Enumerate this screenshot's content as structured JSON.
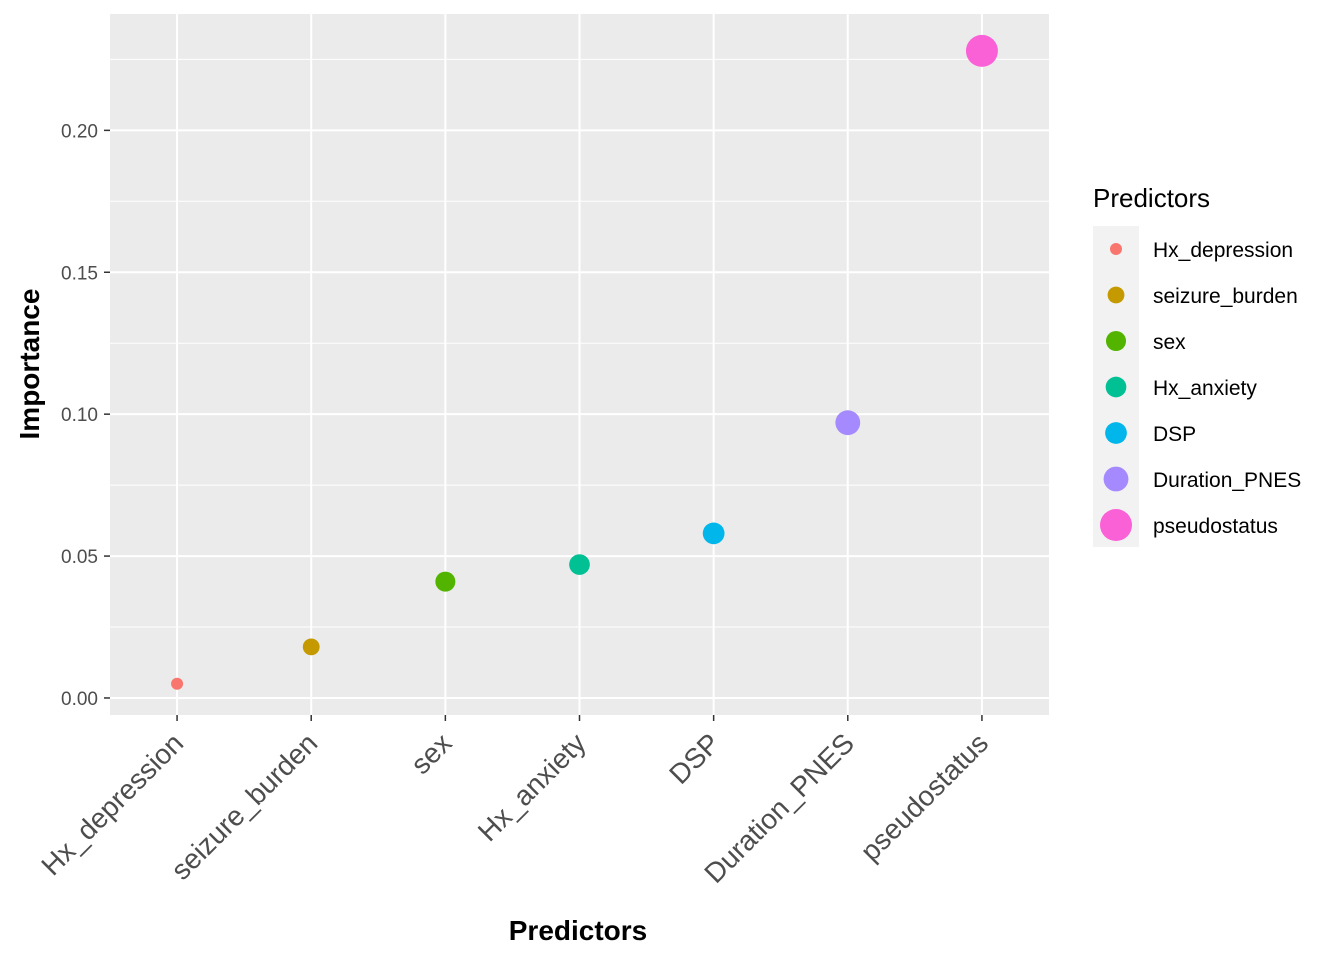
{
  "chart_data": {
    "type": "scatter",
    "categories": [
      "Hx_depression",
      "seizure_burden",
      "sex",
      "Hx_anxiety",
      "DSP",
      "Duration_PNES",
      "pseudostatus"
    ],
    "values": [
      0.005,
      0.018,
      0.041,
      0.047,
      0.058,
      0.097,
      0.228
    ],
    "colors": [
      "#F8766D",
      "#C49A00",
      "#53B400",
      "#00C094",
      "#00B6EB",
      "#A58AFF",
      "#FB61D7"
    ],
    "xlabel": "Predictors",
    "ylabel": "Importance",
    "ylim": [
      -0.006,
      0.241
    ],
    "yticks": [
      0.0,
      0.05,
      0.1,
      0.15,
      0.2
    ],
    "ytick_labels": [
      "0.00",
      "0.05",
      "0.10",
      "0.15",
      "0.20"
    ],
    "grid": true,
    "background": "#EBEBEB",
    "legend": {
      "title": "Predictors",
      "position": "right",
      "entries": [
        "Hx_depression",
        "seizure_burden",
        "sex",
        "Hx_anxiety",
        "DSP",
        "Duration_PNES",
        "pseudostatus"
      ]
    }
  }
}
